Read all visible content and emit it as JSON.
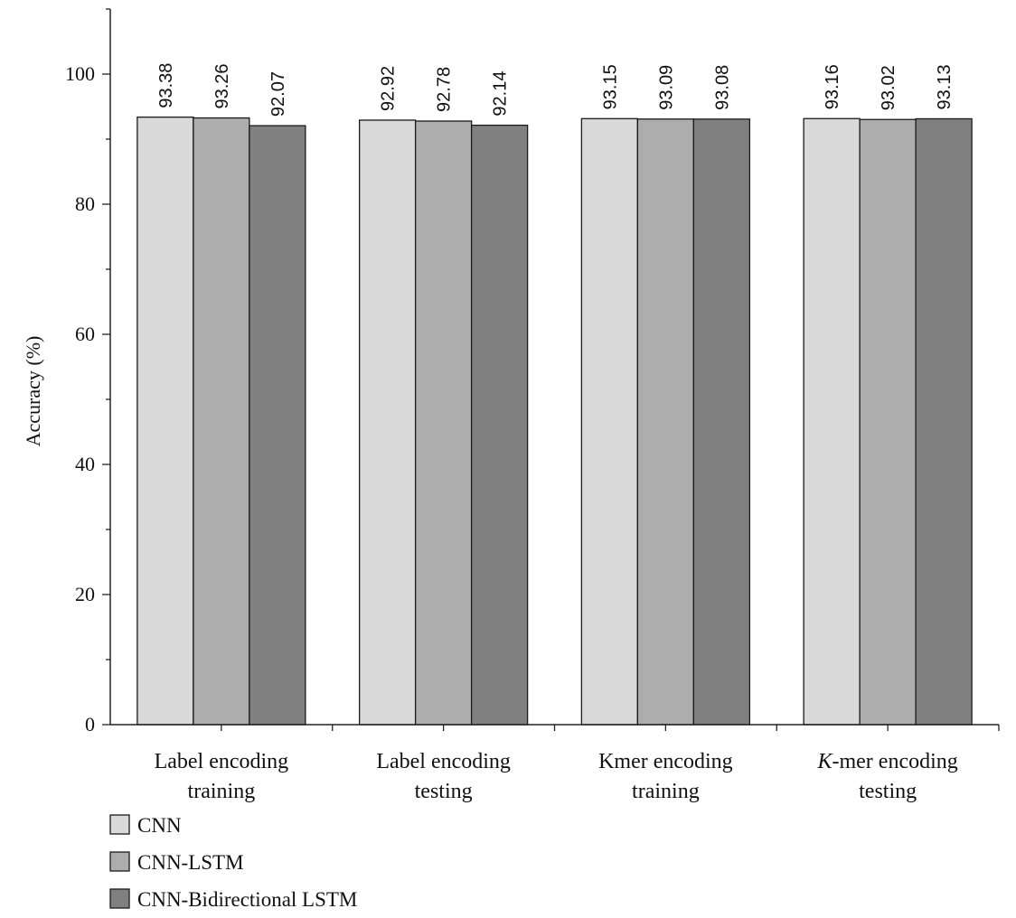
{
  "chart_data": {
    "type": "bar",
    "ylabel": "Accuracy (%)",
    "ylim": [
      0,
      110
    ],
    "yticks": [
      0,
      20,
      40,
      60,
      80,
      100
    ],
    "grid": false,
    "legend_position": "bottom-left",
    "categories": [
      [
        "Label encoding",
        "training"
      ],
      [
        "Label encoding",
        "testing"
      ],
      [
        "Kmer encoding",
        "training"
      ],
      [
        "K-mer encoding",
        "testing"
      ]
    ],
    "series": [
      {
        "name": "CNN",
        "color": "#d9d9d9",
        "values": [
          93.38,
          92.92,
          93.15,
          93.16
        ],
        "labels": [
          "93.38",
          "92.92",
          "93.15",
          "93.16"
        ]
      },
      {
        "name": "CNN-LSTM",
        "color": "#adadad",
        "values": [
          93.26,
          92.78,
          93.09,
          93.02
        ],
        "labels": [
          "93.26",
          "92.78",
          "93.09",
          "93.02"
        ]
      },
      {
        "name": "CNN-Bidirectional LSTM",
        "color": "#808080",
        "values": [
          92.07,
          92.14,
          93.08,
          93.13
        ],
        "labels": [
          "92.07",
          "92.14",
          "93.08",
          "93.13"
        ]
      }
    ]
  }
}
